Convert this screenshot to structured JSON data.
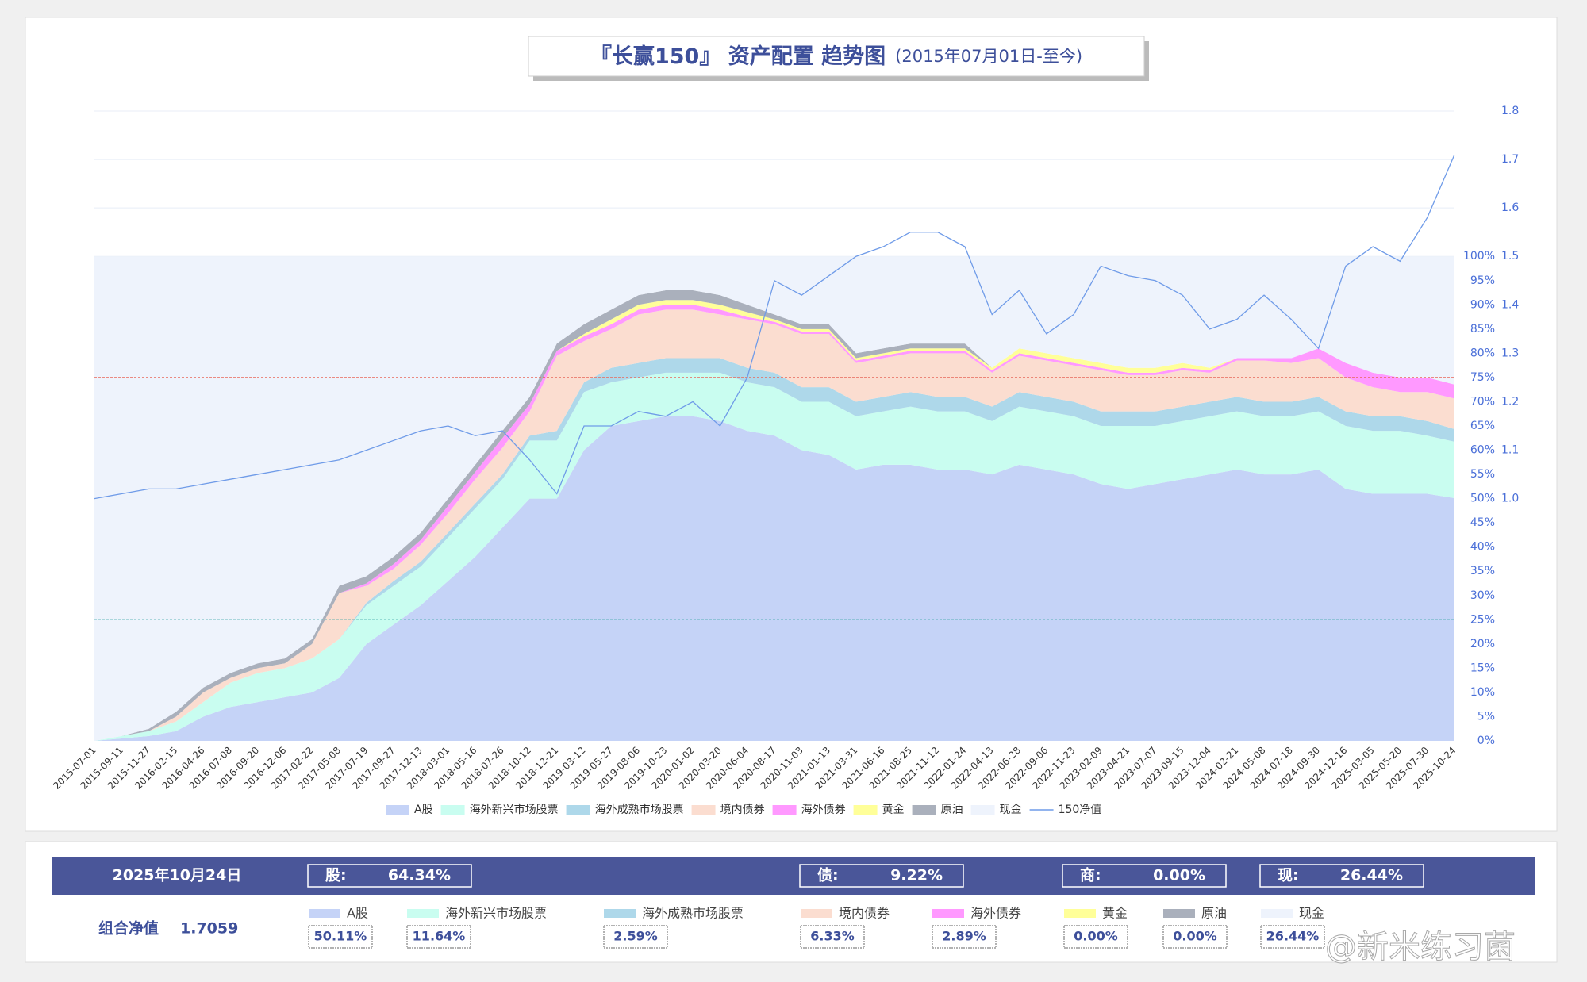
{
  "chart_data": {
    "type": "stacked_area",
    "title": "『长赢150』 资产配置 趋势图",
    "subtitle": "(2015年07月01日-至今)",
    "categories": [
      "2015-07-01",
      "2015-09-11",
      "2015-11-27",
      "2016-02-15",
      "2016-04-26",
      "2016-07-08",
      "2016-09-20",
      "2016-12-06",
      "2017-02-22",
      "2017-05-08",
      "2017-07-19",
      "2017-09-27",
      "2017-12-13",
      "2018-03-01",
      "2018-05-16",
      "2018-07-26",
      "2018-10-12",
      "2018-12-21",
      "2019-03-12",
      "2019-05-27",
      "2019-08-06",
      "2019-10-23",
      "2020-01-02",
      "2020-03-20",
      "2020-06-04",
      "2020-08-17",
      "2020-11-03",
      "2021-01-13",
      "2021-03-31",
      "2021-06-16",
      "2021-08-25",
      "2021-11-12",
      "2022-01-24",
      "2022-04-13",
      "2022-06-28",
      "2022-09-06",
      "2022-11-23",
      "2023-02-09",
      "2023-04-21",
      "2023-07-07",
      "2023-09-15",
      "2023-12-04",
      "2024-02-21",
      "2024-05-08",
      "2024-07-18",
      "2024-09-30",
      "2024-12-16",
      "2025-03-05",
      "2025-05-20",
      "2025-07-30",
      "2025-10-24"
    ],
    "series": [
      {
        "name": "A股",
        "color": "#c5d3f7",
        "values": [
          0,
          0.5,
          1,
          2,
          5,
          7,
          8,
          9,
          10,
          13,
          20,
          24,
          28,
          33,
          38,
          44,
          50,
          50,
          60,
          65,
          66,
          67,
          67,
          66,
          64,
          63,
          60,
          59,
          56,
          57,
          57,
          56,
          56,
          55,
          57,
          56,
          55,
          53,
          52,
          53,
          54,
          55,
          56,
          55,
          55,
          56,
          52,
          51,
          51,
          51,
          50.11
        ]
      },
      {
        "name": "海外新兴市场股票",
        "color": "#c9fdf0",
        "values": [
          0,
          0.5,
          1,
          2,
          3,
          5,
          6,
          6,
          7,
          8,
          8,
          8,
          8,
          9,
          10,
          10,
          12,
          12,
          12,
          9,
          9,
          9,
          9,
          10,
          10,
          10,
          10,
          11,
          11,
          11,
          12,
          12,
          12,
          11,
          12,
          12,
          12,
          12,
          13,
          12,
          12,
          12,
          12,
          12,
          12,
          12,
          13,
          13,
          13,
          12,
          11.64
        ]
      },
      {
        "name": "海外成熟市场股票",
        "color": "#aed8ea",
        "values": [
          0,
          0,
          0,
          0,
          0,
          0,
          0,
          0,
          0,
          0,
          0.5,
          1,
          1,
          1,
          1,
          1,
          1,
          2,
          2,
          3,
          3,
          3,
          3,
          3,
          3,
          3,
          3,
          3,
          3,
          3,
          3,
          3,
          3,
          3,
          3,
          3,
          3,
          3,
          3,
          3,
          3,
          3,
          3,
          3,
          3,
          3,
          3,
          3,
          3,
          3,
          2.59
        ]
      },
      {
        "name": "境内债券",
        "color": "#fbddd0",
        "values": [
          0,
          0,
          0,
          1,
          2,
          1,
          1,
          1,
          3,
          9.5,
          3.5,
          2.5,
          3.5,
          4,
          5,
          5.5,
          5,
          15.5,
          8.5,
          8,
          10,
          10,
          10,
          9,
          10,
          10,
          11,
          11,
          8,
          8,
          8,
          9,
          9,
          7,
          7.5,
          7.5,
          7.5,
          8.5,
          7.5,
          7.5,
          7.5,
          6,
          7.5,
          8.5,
          8,
          8,
          7,
          6,
          5,
          6,
          6.33
        ]
      },
      {
        "name": "海外债券",
        "color": "#ff99ff",
        "values": [
          0,
          0,
          0,
          0,
          0,
          0,
          0,
          0,
          0,
          0,
          0.5,
          1,
          1,
          1.5,
          1.5,
          2,
          1.5,
          1,
          1,
          1,
          1,
          1,
          1,
          1,
          0.5,
          0.5,
          0.5,
          0.5,
          0.5,
          0.5,
          0.5,
          0.5,
          0.5,
          0.5,
          0.5,
          0.5,
          0.5,
          0.5,
          0.5,
          0.5,
          0.5,
          0.5,
          0.5,
          0.5,
          1,
          2,
          3,
          3,
          3,
          3,
          2.89
        ]
      },
      {
        "name": "黄金",
        "color": "#ffff99",
        "values": [
          0,
          0,
          0,
          0,
          0,
          0,
          0,
          0,
          0,
          0,
          0,
          0,
          0,
          0,
          0,
          0,
          0,
          0,
          0.5,
          1,
          1,
          1,
          1,
          1,
          1,
          0.5,
          0.5,
          0.5,
          0.5,
          0.5,
          0.5,
          0.5,
          0.5,
          0.5,
          1,
          1,
          1,
          1,
          1,
          1,
          1,
          0.5,
          0,
          0,
          0,
          0,
          0,
          0,
          0,
          0,
          0
        ]
      },
      {
        "name": "原油",
        "color": "#aab0bc",
        "values": [
          0,
          0,
          0.5,
          1,
          1,
          1,
          1,
          1,
          1,
          1.5,
          1.5,
          1.5,
          1.5,
          1.5,
          1.5,
          1.5,
          1.5,
          1.5,
          2,
          2,
          2,
          2,
          2,
          2,
          1.5,
          1,
          1,
          1,
          1,
          1,
          1,
          1,
          1,
          0,
          0,
          0,
          0,
          0,
          0,
          0,
          0,
          0,
          0,
          0,
          0,
          0,
          0,
          0,
          0,
          0,
          0
        ]
      },
      {
        "name": "现金",
        "color": "#eef3fc",
        "values": [
          100,
          99,
          97.5,
          94,
          89,
          86,
          84,
          83,
          79,
          68,
          66,
          62,
          57,
          50,
          43,
          36,
          29,
          18,
          14,
          11,
          8,
          7,
          7,
          8,
          10,
          12,
          14,
          14,
          20,
          19,
          18,
          18,
          18,
          23,
          19,
          20,
          21,
          22,
          23,
          23,
          22,
          23,
          21,
          21,
          21,
          19,
          22,
          24,
          25,
          25,
          26.44
        ]
      },
      {
        "name": "150净值",
        "color": "#6f9be8",
        "axis": "y2",
        "values": [
          1.0,
          1.01,
          1.02,
          1.02,
          1.03,
          1.04,
          1.05,
          1.06,
          1.07,
          1.08,
          1.1,
          1.12,
          1.14,
          1.15,
          1.13,
          1.14,
          1.08,
          1.01,
          1.15,
          1.15,
          1.18,
          1.17,
          1.2,
          1.15,
          1.25,
          1.45,
          1.42,
          1.46,
          1.5,
          1.52,
          1.55,
          1.55,
          1.52,
          1.38,
          1.43,
          1.34,
          1.38,
          1.48,
          1.46,
          1.45,
          1.42,
          1.35,
          1.37,
          1.42,
          1.37,
          1.31,
          1.48,
          1.52,
          1.49,
          1.58,
          1.71
        ]
      }
    ],
    "ylim": [
      0,
      130
    ],
    "yticks": [
      {
        "value": 0,
        "label": "0%"
      },
      {
        "value": 5,
        "label": "5%"
      },
      {
        "value": 10,
        "label": "10%"
      },
      {
        "value": 15,
        "label": "15%"
      },
      {
        "value": 20,
        "label": "20%"
      },
      {
        "value": 25,
        "label": "25%"
      },
      {
        "value": 30,
        "label": "30%"
      },
      {
        "value": 35,
        "label": "35%"
      },
      {
        "value": 40,
        "label": "40%"
      },
      {
        "value": 45,
        "label": "45%"
      },
      {
        "value": 50,
        "label": "50%"
      },
      {
        "value": 55,
        "label": "55%"
      },
      {
        "value": 60,
        "label": "60%"
      },
      {
        "value": 65,
        "label": "65%"
      },
      {
        "value": 70,
        "label": "70%"
      },
      {
        "value": 75,
        "label": "75%"
      },
      {
        "value": 80,
        "label": "80%"
      },
      {
        "value": 85,
        "label": "85%"
      },
      {
        "value": 90,
        "label": "90%"
      },
      {
        "value": 95,
        "label": "95%"
      },
      {
        "value": 100,
        "label": "100%"
      }
    ],
    "y2lim": [
      0.5,
      1.8
    ],
    "y2ticks": [
      {
        "value": 1,
        "label": "1.0"
      },
      1.1,
      1.2,
      1.3,
      1.4,
      1.5,
      1.6,
      1.7,
      1.8
    ],
    "grid": true,
    "ref_lines": [
      {
        "value": 75,
        "color": "#e8685a"
      },
      {
        "value": 25,
        "color": "#3aa6a6"
      }
    ],
    "legend": "bottom"
  },
  "summary": {
    "date": "2025年10月24日",
    "totals": [
      {
        "label": "股:",
        "value": "64.34%"
      },
      {
        "label": "债:",
        "value": "9.22%"
      },
      {
        "label": "商:",
        "value": "0.00%"
      },
      {
        "label": "现:",
        "value": "26.44%"
      }
    ],
    "nav_label": "组合净值",
    "nav": "1.7059",
    "items": [
      {
        "name": "A股",
        "value": "50.11%"
      },
      {
        "name": "海外新兴市场股票",
        "value": "11.64%"
      },
      {
        "name": "海外成熟市场股票",
        "value": "2.59%"
      },
      {
        "name": "境内债券",
        "value": "6.33%"
      },
      {
        "name": "海外债券",
        "value": "2.89%"
      },
      {
        "name": "黄金",
        "value": "0.00%"
      },
      {
        "name": "原油",
        "value": "0.00%"
      },
      {
        "name": "现金",
        "value": "26.44%"
      }
    ]
  },
  "watermark": "@新米练习菌"
}
